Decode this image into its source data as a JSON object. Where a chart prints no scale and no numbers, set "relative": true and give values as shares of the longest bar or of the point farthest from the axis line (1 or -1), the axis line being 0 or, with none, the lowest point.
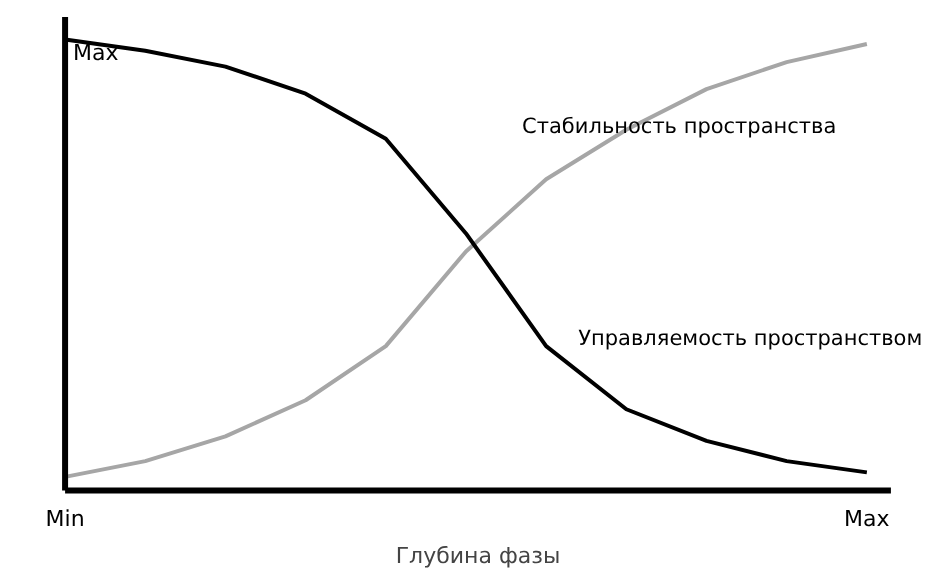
{
  "chart_data": {
    "type": "line",
    "relative": true,
    "xlabel": "Глубина фазы",
    "categories": [
      null,
      null,
      null,
      null,
      null,
      null,
      null,
      null,
      null,
      null,
      null
    ],
    "annotations": [
      "Max",
      "Min",
      "Max"
    ],
    "grid": false,
    "marker": "none",
    "line_style": "solid",
    "series": [
      {
        "name": "Стабильность пространства",
        "color": "#a6a6a6",
        "values": [
          0.03,
          0.065,
          0.12,
          0.2,
          0.32,
          0.53,
          0.69,
          0.8,
          0.89,
          0.95,
          0.99
        ]
      },
      {
        "name": "Управляемость пространством",
        "color": "#000000",
        "values": [
          1,
          0.975,
          0.94,
          0.88,
          0.78,
          0.57,
          0.32,
          0.18,
          0.11,
          0.065,
          0.04
        ]
      }
    ]
  }
}
